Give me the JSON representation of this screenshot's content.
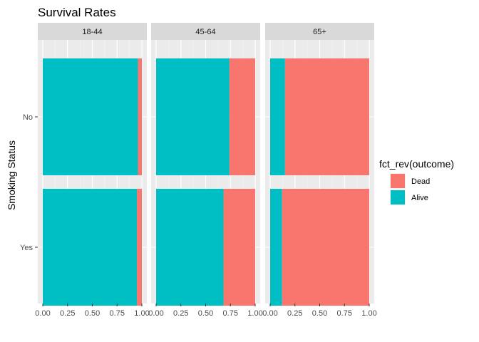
{
  "chart_data": {
    "type": "bar",
    "orientation": "horizontal",
    "stacked": true,
    "title": "Survival Rates",
    "xlabel": "",
    "ylabel": "Smoking Status",
    "xlim": [
      0,
      1
    ],
    "x_ticks": [
      "0.00",
      "0.25",
      "0.50",
      "0.75",
      "1.00"
    ],
    "grid": true,
    "facets": [
      "18-44",
      "45-64",
      "65+"
    ],
    "categories": [
      "No",
      "Yes"
    ],
    "series": [
      {
        "name": "Alive",
        "color": "#00BFC4",
        "values": {
          "18-44": [
            0.96,
            0.95
          ],
          "45-64": [
            0.74,
            0.68
          ],
          "65+": [
            0.15,
            0.12
          ]
        }
      },
      {
        "name": "Dead",
        "color": "#F8766D",
        "values": {
          "18-44": [
            0.04,
            0.05
          ],
          "45-64": [
            0.26,
            0.32
          ],
          "65+": [
            0.85,
            0.88
          ]
        }
      }
    ],
    "legend": {
      "title": "fct_rev(outcome)",
      "position": "right",
      "entries": [
        {
          "label": "Dead",
          "color": "#F8766D"
        },
        {
          "label": "Alive",
          "color": "#00BFC4"
        }
      ]
    }
  }
}
